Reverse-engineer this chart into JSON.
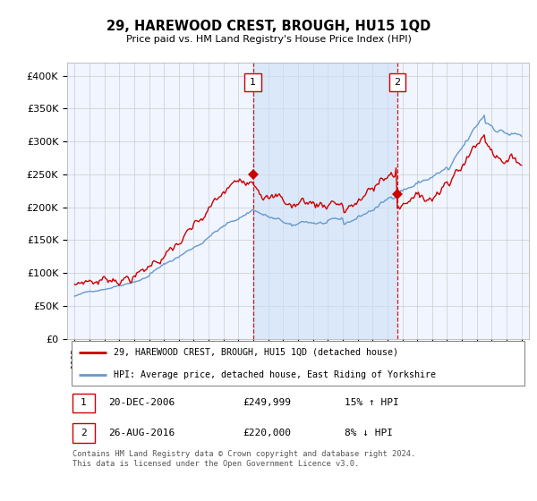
{
  "title": "29, HAREWOOD CREST, BROUGH, HU15 1QD",
  "subtitle": "Price paid vs. HM Land Registry's House Price Index (HPI)",
  "legend_line1": "29, HAREWOOD CREST, BROUGH, HU15 1QD (detached house)",
  "legend_line2": "HPI: Average price, detached house, East Riding of Yorkshire",
  "footer": "Contains HM Land Registry data © Crown copyright and database right 2024.\nThis data is licensed under the Open Government Licence v3.0.",
  "purchase1": {
    "label": "1",
    "date": "20-DEC-2006",
    "price": "£249,999",
    "hpi": "15% ↑ HPI",
    "x": 2006.97
  },
  "purchase2": {
    "label": "2",
    "date": "26-AUG-2016",
    "price": "£220,000",
    "hpi": "8% ↓ HPI",
    "x": 2016.65
  },
  "ylim": [
    0,
    420000
  ],
  "yticks": [
    0,
    50000,
    100000,
    150000,
    200000,
    250000,
    300000,
    350000,
    400000
  ],
  "ytick_labels": [
    "£0",
    "£50K",
    "£100K",
    "£150K",
    "£200K",
    "£250K",
    "£300K",
    "£350K",
    "£400K"
  ],
  "xlim_start": 1994.5,
  "xlim_end": 2025.5,
  "red_color": "#cc0000",
  "blue_color": "#6699cc",
  "shade_color": "#cce0f5",
  "plot_bg": "#f0f5ff"
}
